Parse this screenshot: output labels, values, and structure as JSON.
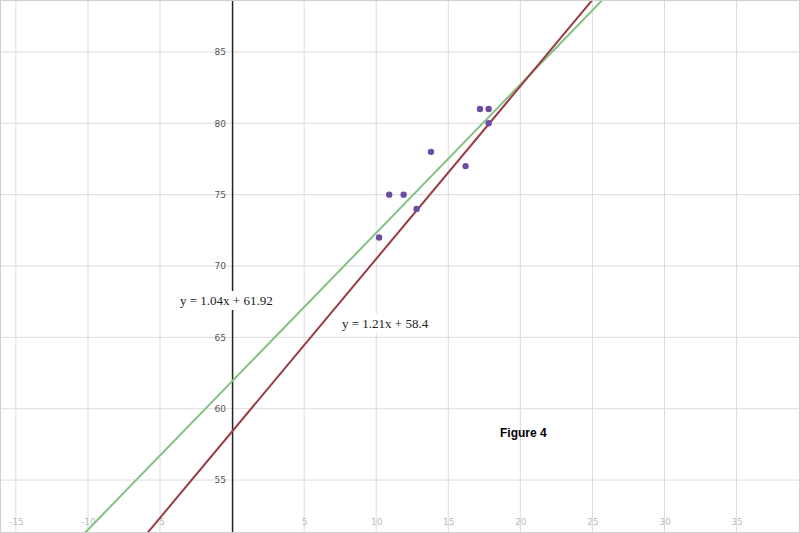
{
  "chart_data": {
    "type": "scatter",
    "x": [
      10.2,
      10.9,
      11.9,
      12.8,
      13.8,
      16.2,
      17.2,
      17.8,
      17.8
    ],
    "values": [
      72,
      75,
      75,
      74,
      78,
      77,
      81,
      81,
      80
    ],
    "color": "#6a4ca3",
    "marker": "circle",
    "lines": [
      {
        "label": "y = 1.04x + 61.92",
        "slope": 1.04,
        "intercept": 61.92,
        "color": "#84c084"
      },
      {
        "label": "y = 1.21x + 58.4",
        "slope": 1.21,
        "intercept": 58.4,
        "color": "#9a3a44"
      }
    ],
    "annotation": "Figure 4",
    "xlim": [
      -16.1,
      39.4
    ],
    "ylim": [
      51.29,
      88.64
    ],
    "xticks": [
      -15,
      -10,
      -5,
      5,
      10,
      15,
      20,
      25,
      30,
      35
    ],
    "yticks": [
      55,
      60,
      65,
      70,
      75,
      80,
      85
    ],
    "grid": true
  }
}
